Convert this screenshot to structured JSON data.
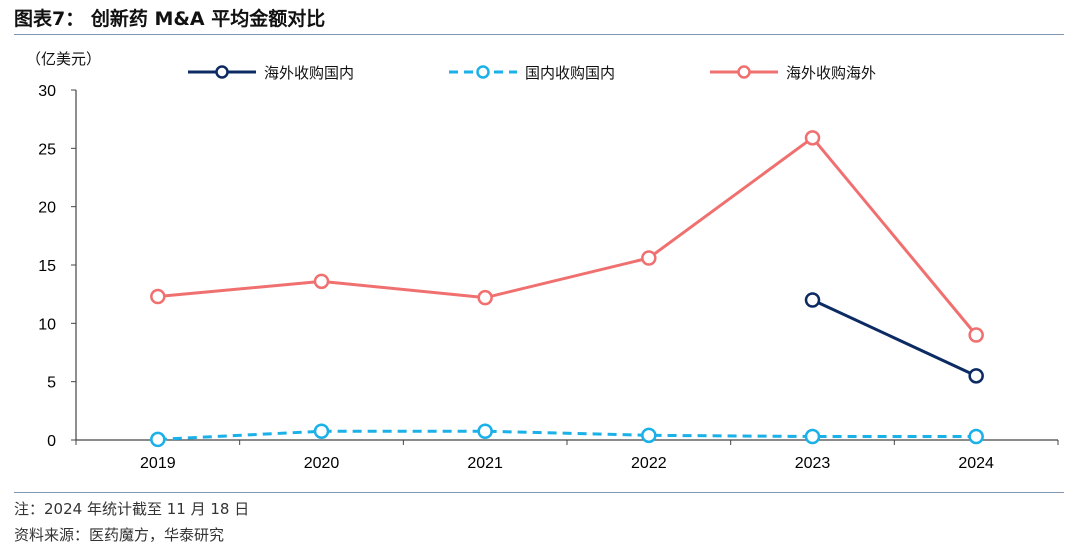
{
  "title": "图表7：  创新药 M&A 平均金额对比",
  "unit_label": "（亿美元）",
  "notes": {
    "note": "注：2024 年统计截至 11 月 18 日",
    "source": "资料来源：医药魔方，华泰研究"
  },
  "colors": {
    "overseas_domestic": "#0d2b63",
    "domestic_domestic": "#1ab0e8",
    "overseas_overseas": "#f07070",
    "rule": "#7f97b3"
  },
  "chart_data": {
    "type": "line",
    "title": "创新药 M&A 平均金额对比",
    "xlabel": "",
    "ylabel": "（亿美元）",
    "categories": [
      "2019",
      "2020",
      "2021",
      "2022",
      "2023",
      "2024"
    ],
    "ylim": [
      0,
      30
    ],
    "yticks": [
      "0",
      "5",
      "10",
      "15",
      "20",
      "25",
      "30"
    ],
    "grid": false,
    "legend_position": "top",
    "series": [
      {
        "name": "海外收购国内",
        "key": "overseas_domestic",
        "style": "solid",
        "values": [
          null,
          null,
          null,
          null,
          12.0,
          5.5
        ]
      },
      {
        "name": "国内收购国内",
        "key": "domestic_domestic",
        "style": "dashed",
        "values": [
          0.05,
          0.75,
          0.75,
          0.4,
          0.3,
          0.3
        ]
      },
      {
        "name": "海外收购海外",
        "key": "overseas_overseas",
        "style": "solid",
        "values": [
          12.3,
          13.6,
          12.2,
          15.6,
          25.9,
          9.0
        ]
      }
    ]
  }
}
